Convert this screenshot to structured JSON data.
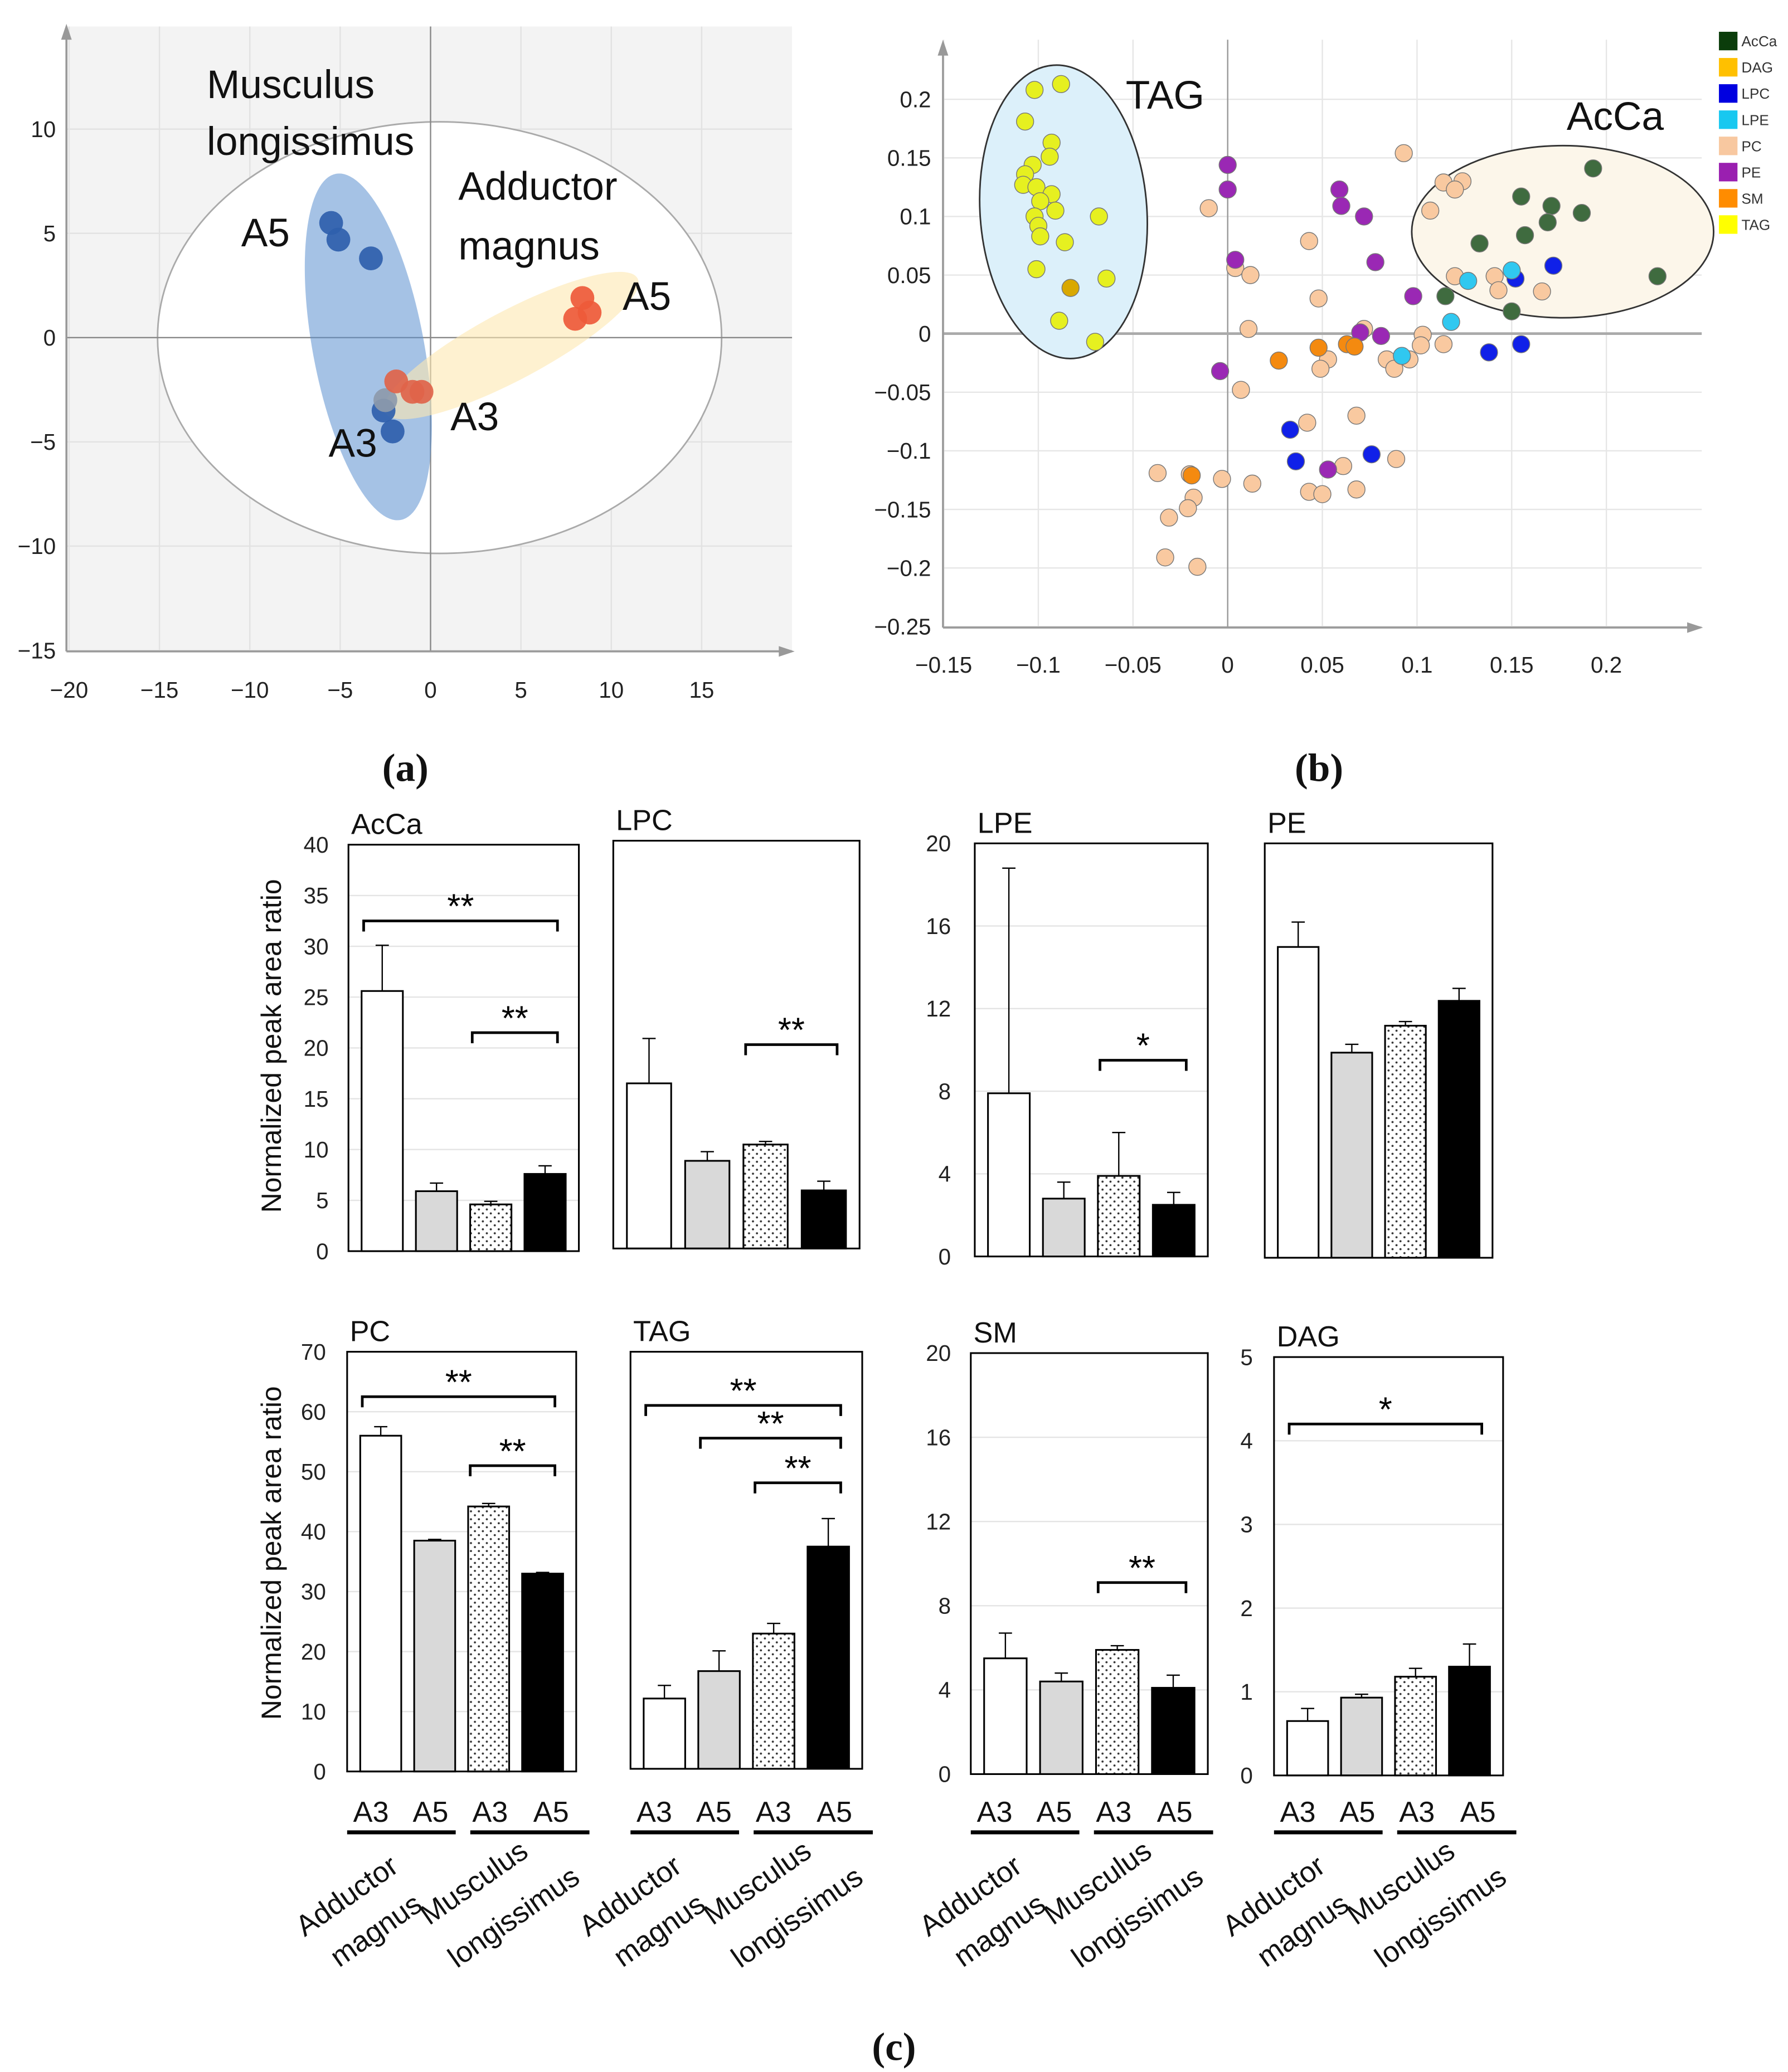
{
  "panel_labels": {
    "a": "(a)",
    "b": "(b)",
    "c": "(c)"
  },
  "chart_data": [
    {
      "id": "a",
      "type": "scatter",
      "xlim": [
        -20,
        20
      ],
      "ylim": [
        -15,
        15
      ],
      "xticks": [
        -20,
        -15,
        -10,
        -5,
        0,
        5,
        10,
        15
      ],
      "yticks": [
        10,
        5,
        0,
        -5,
        -10,
        -15
      ],
      "grid": true,
      "annotations": [
        "Musculus",
        "longissimus",
        "Adductor",
        "magnus",
        "A5",
        "A3",
        "A5",
        "A3"
      ],
      "series": [
        {
          "name": "Musculus longissimus A5",
          "color": "#2f5fad",
          "points": [
            [
              -5.5,
              5.5
            ],
            [
              -5.1,
              4.7
            ],
            [
              -3.3,
              3.8
            ]
          ]
        },
        {
          "name": "Musculus longissimus A3",
          "color": "#2f5fad",
          "points": [
            [
              -2.6,
              -3.5
            ],
            [
              -2.1,
              -4.5
            ],
            [
              -2.5,
              -3.0
            ]
          ]
        },
        {
          "name": "Adductor magnus A5",
          "color": "#ee5a3a",
          "points": [
            [
              8.4,
              1.9
            ],
            [
              8.8,
              1.2
            ],
            [
              8.0,
              0.9
            ]
          ]
        },
        {
          "name": "Adductor magnus A3",
          "color": "#e0644a",
          "points": [
            [
              -1.9,
              -2.1
            ],
            [
              -1.0,
              -2.6
            ],
            [
              -0.5,
              -2.6
            ]
          ]
        }
      ]
    },
    {
      "id": "b",
      "type": "scatter",
      "xlim": [
        -0.15,
        0.25
      ],
      "ylim": [
        -0.25,
        0.23
      ],
      "xticks": [
        "-0.15",
        "-0.1",
        "-0.05",
        "0",
        "0.05",
        "0.1",
        "0.15",
        "0.2"
      ],
      "yticks": [
        "0.2",
        "0.15",
        "0.1",
        "0.05",
        "0",
        "-0.05",
        "-0.1",
        "-0.15",
        "-0.2",
        "-0.25"
      ],
      "grid": true,
      "legend_position": "top-right",
      "annotations": [
        "TAG",
        "AcCa"
      ],
      "series": [
        {
          "name": "AcCa",
          "color": "#0b3d0b",
          "marker": "#3f6b3f",
          "points": [
            [
              0.193,
              0.141
            ],
            [
              0.155,
              0.117
            ],
            [
              0.171,
              0.109
            ],
            [
              0.187,
              0.103
            ],
            [
              0.169,
              0.095
            ],
            [
              0.157,
              0.084
            ],
            [
              0.133,
              0.077
            ],
            [
              0.227,
              0.049
            ],
            [
              0.15,
              0.019
            ],
            [
              0.115,
              0.032
            ]
          ]
        },
        {
          "name": "DAG",
          "color": "#ffc000",
          "marker": "#d9a800",
          "points": [
            [
              -0.083,
              0.039
            ]
          ]
        },
        {
          "name": "LPC",
          "color": "#0000e0",
          "marker": "#1020e8",
          "points": [
            [
              0.172,
              0.058
            ],
            [
              0.152,
              0.047
            ],
            [
              0.138,
              -0.016
            ],
            [
              0.155,
              -0.009
            ],
            [
              0.033,
              -0.082
            ],
            [
              0.036,
              -0.109
            ],
            [
              0.076,
              -0.103
            ]
          ]
        },
        {
          "name": "LPE",
          "color": "#18c8f0",
          "marker": "#30c8f0",
          "points": [
            [
              0.127,
              0.045
            ],
            [
              0.15,
              0.054
            ],
            [
              0.118,
              0.01
            ],
            [
              0.092,
              -0.019
            ]
          ]
        },
        {
          "name": "PC",
          "color": "#f8c8a0",
          "marker": "#f9c9a0",
          "points": [
            [
              0.093,
              0.154
            ],
            [
              0.114,
              0.129
            ],
            [
              0.124,
              0.13
            ],
            [
              0.12,
              0.123
            ],
            [
              0.107,
              0.105
            ],
            [
              -0.01,
              0.107
            ],
            [
              0.043,
              0.079
            ],
            [
              0.004,
              0.056
            ],
            [
              0.012,
              0.05
            ],
            [
              0.12,
              0.049
            ],
            [
              0.141,
              0.049
            ],
            [
              0.143,
              0.037
            ],
            [
              0.166,
              0.036
            ],
            [
              0.048,
              0.03
            ],
            [
              0.011,
              0.004
            ],
            [
              0.072,
              0.004
            ],
            [
              0.103,
              -0.001
            ],
            [
              0.102,
              -0.01
            ],
            [
              0.114,
              -0.009
            ],
            [
              0.084,
              -0.022
            ],
            [
              0.096,
              -0.022
            ],
            [
              0.088,
              -0.03
            ],
            [
              0.053,
              -0.022
            ],
            [
              0.049,
              -0.03
            ],
            [
              0.007,
              -0.048
            ],
            [
              0.068,
              -0.07
            ],
            [
              0.042,
              -0.076
            ],
            [
              0.089,
              -0.107
            ],
            [
              0.061,
              -0.113
            ],
            [
              -0.037,
              -0.119
            ],
            [
              -0.02,
              -0.12
            ],
            [
              -0.003,
              -0.124
            ],
            [
              0.013,
              -0.128
            ],
            [
              0.043,
              -0.135
            ],
            [
              0.05,
              -0.137
            ],
            [
              0.068,
              -0.133
            ],
            [
              -0.018,
              -0.14
            ],
            [
              -0.021,
              -0.149
            ],
            [
              -0.031,
              -0.157
            ],
            [
              -0.033,
              -0.191
            ],
            [
              -0.016,
              -0.199
            ]
          ]
        },
        {
          "name": "PE",
          "color": "#9a1fb0",
          "marker": "#9a28b4",
          "points": [
            [
              0,
              0.144
            ],
            [
              0,
              0.123
            ],
            [
              0.059,
              0.123
            ],
            [
              0.06,
              0.109
            ],
            [
              0.072,
              0.1
            ],
            [
              0.004,
              0.063
            ],
            [
              0.078,
              0.061
            ],
            [
              0.098,
              0.032
            ],
            [
              0.07,
              0.001
            ],
            [
              0.081,
              -0.002
            ],
            [
              -0.004,
              -0.032
            ],
            [
              0.053,
              -0.116
            ]
          ]
        },
        {
          "name": "SM",
          "color": "#ff8c00",
          "marker": "#f48a10",
          "points": [
            [
              0.027,
              -0.023
            ],
            [
              0.048,
              -0.012
            ],
            [
              0.063,
              -0.009
            ],
            [
              0.067,
              -0.011
            ],
            [
              -0.019,
              -0.121
            ]
          ]
        },
        {
          "name": "TAG",
          "color": "#ffff00",
          "marker": "#e6f020",
          "points": [
            [
              -0.102,
              0.208
            ],
            [
              -0.088,
              0.213
            ],
            [
              -0.107,
              0.181
            ],
            [
              -0.093,
              0.163
            ],
            [
              -0.094,
              0.151
            ],
            [
              -0.103,
              0.144
            ],
            [
              -0.107,
              0.136
            ],
            [
              -0.108,
              0.127
            ],
            [
              -0.101,
              0.125
            ],
            [
              -0.093,
              0.119
            ],
            [
              -0.099,
              0.113
            ],
            [
              -0.091,
              0.105
            ],
            [
              -0.102,
              0.1
            ],
            [
              -0.1,
              0.092
            ],
            [
              -0.099,
              0.083
            ],
            [
              -0.086,
              0.078
            ],
            [
              -0.068,
              0.1
            ],
            [
              -0.101,
              0.055
            ],
            [
              -0.064,
              0.047
            ],
            [
              -0.089,
              0.011
            ],
            [
              -0.07,
              -0.007
            ]
          ]
        }
      ]
    },
    {
      "id": "c",
      "type": "bar",
      "ylabel": "Normalized peak area ratio",
      "categories": [
        "A3",
        "A5",
        "A3",
        "A5"
      ],
      "groups": [
        [
          "Adductor",
          "magnus"
        ],
        [
          "Musculus",
          "longissimus"
        ]
      ],
      "bar_styles": [
        "white",
        "grey",
        "dotted",
        "black"
      ],
      "charts": [
        {
          "title": "AcCa",
          "ylim": [
            0,
            40
          ],
          "yticks": [
            0,
            5,
            10,
            15,
            20,
            25,
            30,
            35,
            40
          ],
          "values": [
            25.6,
            5.9,
            4.6,
            7.6
          ],
          "errors": [
            4.5,
            0.8,
            0.3,
            0.8
          ],
          "significance": [
            {
              "from": 0,
              "to": 3,
              "level": 32.5,
              "label": "**"
            },
            {
              "from": 2,
              "to": 3,
              "level": 21.5,
              "label": "**"
            }
          ]
        },
        {
          "title": "LPC",
          "ylim": [
            0,
            40
          ],
          "yticks": [],
          "values": [
            16.2,
            8.6,
            10.2,
            5.7
          ],
          "errors": [
            4.4,
            0.9,
            0.3,
            0.9
          ],
          "significance": [
            {
              "from": 2,
              "to": 3,
              "level": 20,
              "label": "**"
            }
          ]
        },
        {
          "title": "LPE",
          "ylim": [
            0,
            20
          ],
          "yticks": [
            0,
            4,
            8,
            12,
            16,
            20
          ],
          "values": [
            7.9,
            2.8,
            3.9,
            2.5
          ],
          "errors": [
            10.9,
            0.8,
            2.1,
            0.6
          ],
          "significance": [
            {
              "from": 2,
              "to": 3,
              "level": 9.5,
              "label": "*"
            }
          ]
        },
        {
          "title": "PE",
          "ylim": [
            0,
            20
          ],
          "yticks": [],
          "values": [
            15.0,
            9.9,
            11.2,
            12.4
          ],
          "errors": [
            1.2,
            0.4,
            0.2,
            0.6
          ],
          "significance": []
        },
        {
          "title": "PC",
          "ylim": [
            0,
            70
          ],
          "yticks": [
            0,
            10,
            20,
            30,
            40,
            50,
            60,
            70
          ],
          "values": [
            56,
            38.5,
            44.2,
            33
          ],
          "errors": [
            1.5,
            0.2,
            0.5,
            0.2
          ],
          "significance": [
            {
              "from": 0,
              "to": 3,
              "level": 62.5,
              "label": "**"
            },
            {
              "from": 2,
              "to": 3,
              "level": 51,
              "label": "**"
            }
          ]
        },
        {
          "title": "TAG",
          "ylim": [
            0,
            70
          ],
          "yticks": [],
          "values": [
            11.8,
            16.4,
            22.7,
            37.3
          ],
          "errors": [
            2.2,
            3.4,
            1.7,
            4.7
          ],
          "significance": [
            {
              "from": 0,
              "to": 3,
              "level": 61,
              "label": "**"
            },
            {
              "from": 1,
              "to": 3,
              "level": 55.5,
              "label": "**"
            },
            {
              "from": 2,
              "to": 3,
              "level": 48,
              "label": "**"
            }
          ]
        },
        {
          "title": "SM",
          "ylim": [
            0,
            20
          ],
          "yticks": [
            0,
            4,
            8,
            12,
            16,
            20
          ],
          "values": [
            5.5,
            4.4,
            5.9,
            4.1
          ],
          "errors": [
            1.2,
            0.4,
            0.2,
            0.6
          ],
          "significance": [
            {
              "from": 2,
              "to": 3,
              "level": 9.1,
              "label": "**"
            }
          ]
        },
        {
          "title": "DAG",
          "ylim": [
            0,
            5
          ],
          "yticks": [
            0,
            1,
            2,
            3,
            4,
            5
          ],
          "values": [
            0.65,
            0.93,
            1.18,
            1.3
          ],
          "errors": [
            0.15,
            0.04,
            0.1,
            0.27
          ],
          "significance": [
            {
              "from": 0,
              "to": 3,
              "level": 4.2,
              "label": "*"
            }
          ]
        }
      ]
    }
  ]
}
